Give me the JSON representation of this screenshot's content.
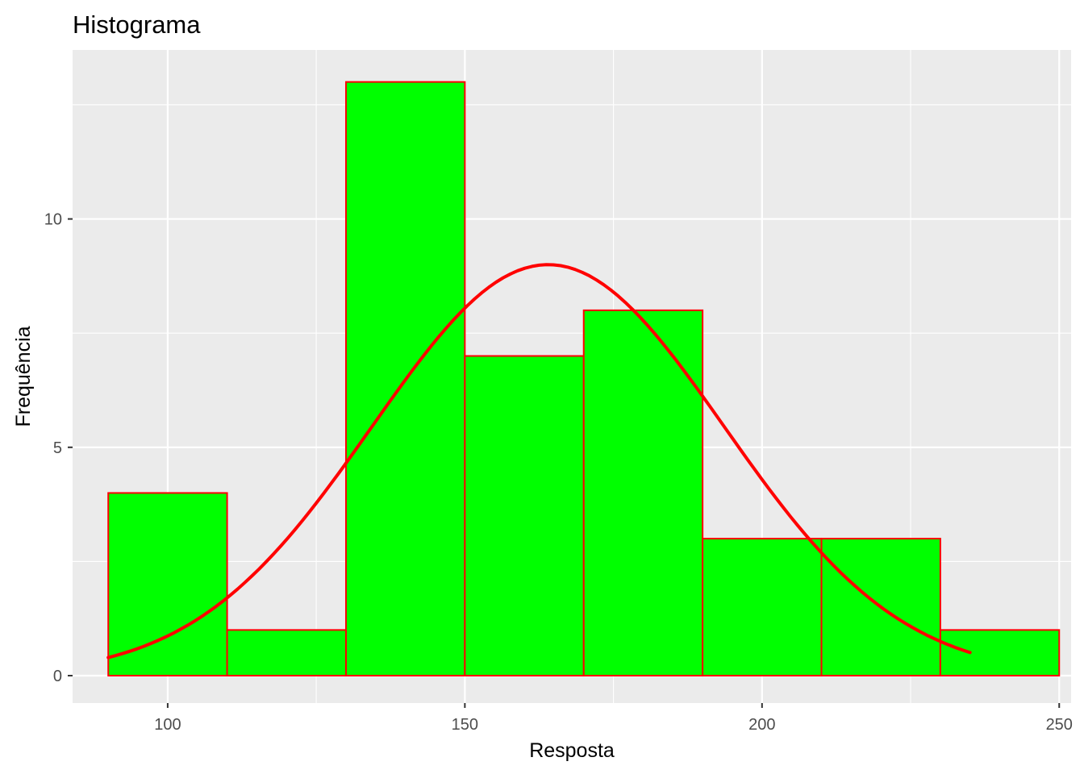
{
  "chart_data": {
    "type": "bar",
    "title": "Histograma",
    "xlabel": "Resposta",
    "ylabel": "Frequência",
    "xlim": [
      84,
      252
    ],
    "ylim": [
      -0.6,
      13.7
    ],
    "x_ticks": [
      100,
      150,
      200,
      250
    ],
    "x_tick_labels": [
      "100",
      "150",
      "200",
      "250"
    ],
    "y_ticks": [
      0,
      5,
      10
    ],
    "y_tick_labels": [
      "0",
      "5",
      "10"
    ],
    "grid": true,
    "legend": "none",
    "bins": [
      {
        "start": 90,
        "end": 110,
        "count": 4
      },
      {
        "start": 110,
        "end": 130,
        "count": 1
      },
      {
        "start": 130,
        "end": 150,
        "count": 13
      },
      {
        "start": 150,
        "end": 170,
        "count": 7
      },
      {
        "start": 170,
        "end": 190,
        "count": 8
      },
      {
        "start": 190,
        "end": 210,
        "count": 3
      },
      {
        "start": 210,
        "end": 230,
        "count": 3
      },
      {
        "start": 230,
        "end": 250,
        "count": 1
      }
    ],
    "density_curve": {
      "x_range": [
        90,
        235
      ],
      "mean": 164,
      "sd": 29.6,
      "peak": 9.0
    },
    "colors": {
      "bar_fill": "#00FF00",
      "bar_outline": "#FF0000",
      "curve": "#FF0000",
      "panel_background": "#EBEBEB",
      "grid": "#FFFFFF"
    }
  }
}
